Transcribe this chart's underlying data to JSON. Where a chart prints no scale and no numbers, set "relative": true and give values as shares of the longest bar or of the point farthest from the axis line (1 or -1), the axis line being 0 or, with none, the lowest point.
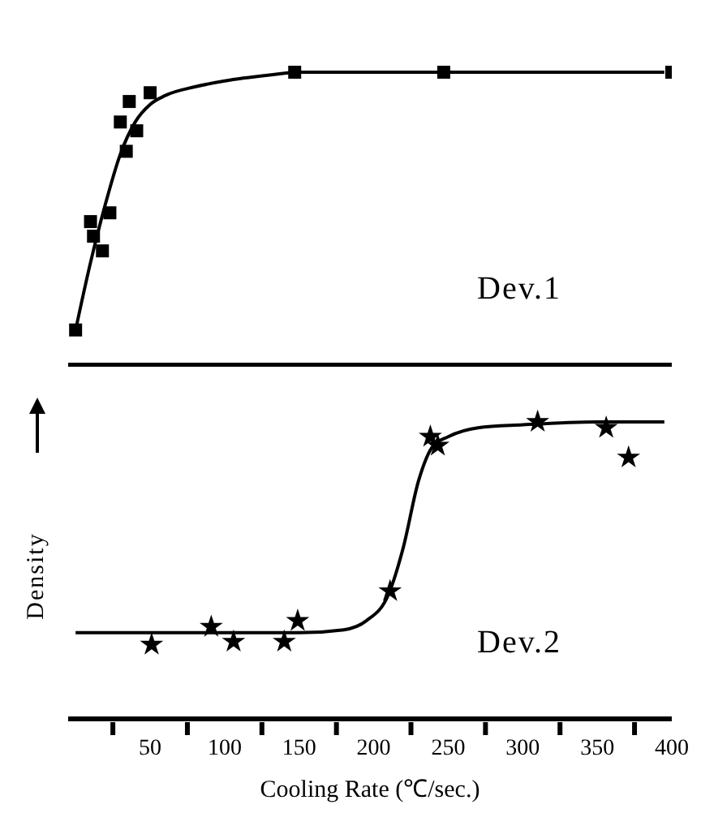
{
  "chart_data": [
    {
      "type": "scatter",
      "relative": true,
      "xlim": [
        -5,
        400
      ],
      "tick_labels": false,
      "annotations": [
        "Dev.1"
      ],
      "series": [
        {
          "type": "scatter",
          "marker": "square",
          "color": "#000000",
          "x": [
            0,
            10,
            12,
            18,
            23,
            30,
            34,
            36,
            41,
            50,
            147,
            247,
            400
          ],
          "values": [
            0.12,
            0.49,
            0.44,
            0.39,
            0.52,
            0.83,
            0.73,
            0.9,
            0.8,
            0.93,
            1.0,
            1.0,
            1.0
          ]
        },
        {
          "type": "line",
          "marker": "none",
          "color": "#000000",
          "x": [
            0,
            10,
            20,
            30,
            40,
            50,
            60,
            80,
            100,
            130,
            150,
            200,
            250,
            300,
            395
          ],
          "values": [
            0.12,
            0.35,
            0.55,
            0.72,
            0.83,
            0.89,
            0.92,
            0.95,
            0.97,
            0.99,
            1.0,
            1.0,
            1.0,
            1.0,
            1.0
          ]
        }
      ]
    },
    {
      "type": "scatter",
      "relative": true,
      "xlim": [
        -5,
        400
      ],
      "xticks": [
        {
          "value": 25,
          "label": null
        },
        50,
        {
          "value": 75,
          "label": null
        },
        100,
        {
          "value": 125,
          "label": null
        },
        150,
        {
          "value": 175,
          "label": null
        },
        200,
        {
          "value": 225,
          "label": null
        },
        250,
        {
          "value": 275,
          "label": null
        },
        300,
        {
          "value": 325,
          "label": null
        },
        350,
        {
          "value": 375,
          "label": null
        },
        400
      ],
      "tick_labels": "x",
      "xlabel": "Cooling Rate (℃/sec.)",
      "ylabel": "Density",
      "annotations": [
        "Dev.2"
      ],
      "series": [
        {
          "type": "scatter",
          "marker": "star",
          "color": "#000000",
          "x": [
            51,
            91,
            106,
            140,
            149,
            211,
            238,
            243,
            310,
            356,
            371
          ],
          "values": [
            0.25,
            0.31,
            0.26,
            0.26,
            0.33,
            0.43,
            0.95,
            0.92,
            1.0,
            0.98,
            0.88
          ]
        },
        {
          "type": "line",
          "marker": "none",
          "color": "#000000",
          "x": [
            0,
            50,
            100,
            150,
            180,
            195,
            210,
            220,
            230,
            240,
            250,
            270,
            300,
            350,
            395
          ],
          "values": [
            0.29,
            0.29,
            0.29,
            0.29,
            0.3,
            0.33,
            0.42,
            0.58,
            0.8,
            0.92,
            0.95,
            0.98,
            0.99,
            1.0,
            1.0
          ]
        }
      ]
    }
  ]
}
